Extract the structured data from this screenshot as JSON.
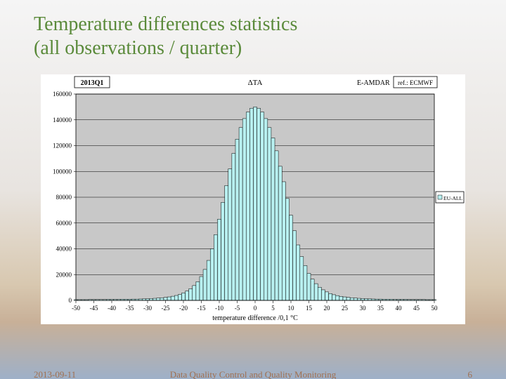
{
  "title_line1": "Temperature differences statistics",
  "title_line2": "(all observations / quarter)",
  "footer": {
    "date": "2013-09-11",
    "caption": "Data Quality Control and Quality Monitoring",
    "pagenum": "6"
  },
  "chart": {
    "type": "histogram",
    "badge_tl": "2013Q1",
    "badge_center": "ΔTA",
    "badge_right": "E-AMDAR",
    "badge_ref": "ref.: ECMWF",
    "legend_series": "EU-ALL",
    "xlabel": "temperature difference /0,1 °C",
    "xlim": [
      -50,
      50
    ],
    "xtick_step": 5,
    "ylim": [
      0,
      160000
    ],
    "ytick_step": 20000,
    "background_color": "#ffffff",
    "plot_background_color": "#c8c8c8",
    "grid_color": "#000000",
    "bar_fill": "#b8f0f0",
    "bar_stroke": "#000000",
    "tick_font_size": 9,
    "label_font_size": 10,
    "bins": [
      {
        "x": -50,
        "v": 600
      },
      {
        "x": -49,
        "v": 600
      },
      {
        "x": -48,
        "v": 600
      },
      {
        "x": -47,
        "v": 600
      },
      {
        "x": -46,
        "v": 700
      },
      {
        "x": -45,
        "v": 700
      },
      {
        "x": -44,
        "v": 700
      },
      {
        "x": -43,
        "v": 700
      },
      {
        "x": -42,
        "v": 700
      },
      {
        "x": -41,
        "v": 800
      },
      {
        "x": -40,
        "v": 800
      },
      {
        "x": -39,
        "v": 800
      },
      {
        "x": -38,
        "v": 800
      },
      {
        "x": -37,
        "v": 900
      },
      {
        "x": -36,
        "v": 900
      },
      {
        "x": -35,
        "v": 900
      },
      {
        "x": -34,
        "v": 1000
      },
      {
        "x": -33,
        "v": 1000
      },
      {
        "x": -32,
        "v": 1100
      },
      {
        "x": -31,
        "v": 1200
      },
      {
        "x": -30,
        "v": 1300
      },
      {
        "x": -29,
        "v": 1400
      },
      {
        "x": -28,
        "v": 1600
      },
      {
        "x": -27,
        "v": 1800
      },
      {
        "x": -26,
        "v": 2000
      },
      {
        "x": -25,
        "v": 2300
      },
      {
        "x": -24,
        "v": 2700
      },
      {
        "x": -23,
        "v": 3200
      },
      {
        "x": -22,
        "v": 3800
      },
      {
        "x": -21,
        "v": 4600
      },
      {
        "x": -20,
        "v": 5800
      },
      {
        "x": -19,
        "v": 7200
      },
      {
        "x": -18,
        "v": 9000
      },
      {
        "x": -17,
        "v": 11500
      },
      {
        "x": -16,
        "v": 14500
      },
      {
        "x": -15,
        "v": 18500
      },
      {
        "x": -14,
        "v": 24000
      },
      {
        "x": -13,
        "v": 31000
      },
      {
        "x": -12,
        "v": 40000
      },
      {
        "x": -11,
        "v": 51000
      },
      {
        "x": -10,
        "v": 63000
      },
      {
        "x": -9,
        "v": 76000
      },
      {
        "x": -8,
        "v": 89000
      },
      {
        "x": -7,
        "v": 102000
      },
      {
        "x": -6,
        "v": 114000
      },
      {
        "x": -5,
        "v": 125000
      },
      {
        "x": -4,
        "v": 134000
      },
      {
        "x": -3,
        "v": 141000
      },
      {
        "x": -2,
        "v": 146000
      },
      {
        "x": -1,
        "v": 149000
      },
      {
        "x": 0,
        "v": 150000
      },
      {
        "x": 1,
        "v": 149000
      },
      {
        "x": 2,
        "v": 146000
      },
      {
        "x": 3,
        "v": 141000
      },
      {
        "x": 4,
        "v": 134000
      },
      {
        "x": 5,
        "v": 126000
      },
      {
        "x": 6,
        "v": 116000
      },
      {
        "x": 7,
        "v": 104000
      },
      {
        "x": 8,
        "v": 92000
      },
      {
        "x": 9,
        "v": 79000
      },
      {
        "x": 10,
        "v": 66000
      },
      {
        "x": 11,
        "v": 54000
      },
      {
        "x": 12,
        "v": 43000
      },
      {
        "x": 13,
        "v": 34000
      },
      {
        "x": 14,
        "v": 27000
      },
      {
        "x": 15,
        "v": 21000
      },
      {
        "x": 16,
        "v": 16500
      },
      {
        "x": 17,
        "v": 13000
      },
      {
        "x": 18,
        "v": 10200
      },
      {
        "x": 19,
        "v": 8200
      },
      {
        "x": 20,
        "v": 6600
      },
      {
        "x": 21,
        "v": 5300
      },
      {
        "x": 22,
        "v": 4400
      },
      {
        "x": 23,
        "v": 3700
      },
      {
        "x": 24,
        "v": 3100
      },
      {
        "x": 25,
        "v": 2700
      },
      {
        "x": 26,
        "v": 2300
      },
      {
        "x": 27,
        "v": 2000
      },
      {
        "x": 28,
        "v": 1800
      },
      {
        "x": 29,
        "v": 1600
      },
      {
        "x": 30,
        "v": 1400
      },
      {
        "x": 31,
        "v": 1300
      },
      {
        "x": 32,
        "v": 1200
      },
      {
        "x": 33,
        "v": 1100
      },
      {
        "x": 34,
        "v": 1000
      },
      {
        "x": 35,
        "v": 1000
      },
      {
        "x": 36,
        "v": 900
      },
      {
        "x": 37,
        "v": 900
      },
      {
        "x": 38,
        "v": 900
      },
      {
        "x": 39,
        "v": 800
      },
      {
        "x": 40,
        "v": 800
      },
      {
        "x": 41,
        "v": 800
      },
      {
        "x": 42,
        "v": 800
      },
      {
        "x": 43,
        "v": 700
      },
      {
        "x": 44,
        "v": 700
      },
      {
        "x": 45,
        "v": 700
      },
      {
        "x": 46,
        "v": 700
      },
      {
        "x": 47,
        "v": 700
      },
      {
        "x": 48,
        "v": 600
      },
      {
        "x": 49,
        "v": 600
      },
      {
        "x": 50,
        "v": 600
      }
    ]
  }
}
